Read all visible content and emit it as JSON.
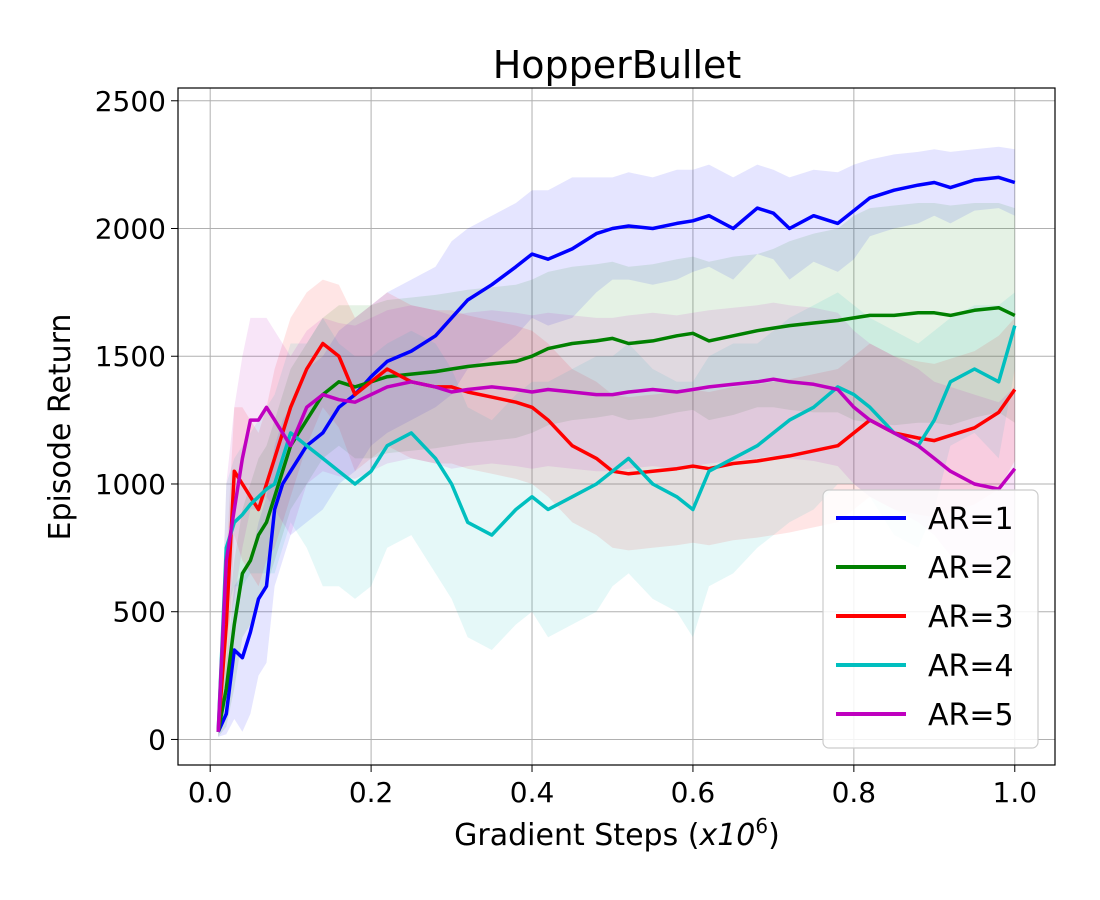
{
  "chart_data": {
    "type": "line",
    "title": "HopperBullet",
    "xlabel_prefix": "Gradient Steps (",
    "xlabel_var": "x10",
    "xlabel_exponent": "6",
    "xlabel_suffix": ")",
    "ylabel": "Episode Return",
    "xlim": [
      -0.04,
      1.05
    ],
    "ylim": [
      -100,
      2550
    ],
    "xticks": [
      0.0,
      0.2,
      0.4,
      0.6,
      0.8,
      1.0
    ],
    "xtick_labels": [
      "0.0",
      "0.2",
      "0.4",
      "0.6",
      "0.8",
      "1.0"
    ],
    "yticks": [
      0,
      500,
      1000,
      1500,
      2000,
      2500
    ],
    "ytick_labels": [
      "0",
      "500",
      "1000",
      "1500",
      "2000",
      "2500"
    ],
    "grid": true,
    "legend_position": "bottom-right",
    "x": [
      0.01,
      0.02,
      0.03,
      0.04,
      0.05,
      0.06,
      0.07,
      0.08,
      0.09,
      0.1,
      0.12,
      0.14,
      0.16,
      0.18,
      0.2,
      0.22,
      0.25,
      0.28,
      0.3,
      0.32,
      0.35,
      0.38,
      0.4,
      0.42,
      0.45,
      0.48,
      0.5,
      0.52,
      0.55,
      0.58,
      0.6,
      0.62,
      0.65,
      0.68,
      0.7,
      0.72,
      0.75,
      0.78,
      0.8,
      0.82,
      0.85,
      0.88,
      0.9,
      0.92,
      0.95,
      0.98,
      1.0
    ],
    "series": [
      {
        "name": "AR=1",
        "color": "#0000ff",
        "values": [
          30,
          100,
          350,
          320,
          420,
          550,
          600,
          900,
          1000,
          1050,
          1150,
          1200,
          1300,
          1350,
          1420,
          1480,
          1520,
          1580,
          1650,
          1720,
          1780,
          1850,
          1900,
          1880,
          1920,
          1980,
          2000,
          2010,
          2000,
          2020,
          2030,
          2050,
          2000,
          2080,
          2060,
          2000,
          2050,
          2020,
          2070,
          2120,
          2150,
          2170,
          2180,
          2160,
          2190,
          2200,
          2180
        ],
        "upper": [
          60,
          300,
          600,
          650,
          700,
          850,
          950,
          1150,
          1250,
          1300,
          1450,
          1500,
          1600,
          1650,
          1700,
          1750,
          1800,
          1850,
          1950,
          2000,
          2050,
          2100,
          2150,
          2150,
          2200,
          2200,
          2200,
          2220,
          2200,
          2230,
          2230,
          2250,
          2200,
          2250,
          2230,
          2200,
          2230,
          2220,
          2250,
          2270,
          2290,
          2300,
          2310,
          2300,
          2310,
          2320,
          2310
        ],
        "lower": [
          10,
          20,
          80,
          30,
          100,
          250,
          300,
          600,
          700,
          800,
          850,
          900,
          1000,
          1050,
          1150,
          1200,
          1250,
          1300,
          1350,
          1450,
          1500,
          1580,
          1650,
          1620,
          1650,
          1750,
          1800,
          1800,
          1780,
          1800,
          1830,
          1850,
          1800,
          1900,
          1880,
          1800,
          1870,
          1830,
          1880,
          1970,
          2000,
          2020,
          2050,
          2020,
          2070,
          2080,
          2050
        ]
      },
      {
        "name": "AR=2",
        "color": "#008000",
        "values": [
          30,
          200,
          450,
          650,
          700,
          800,
          850,
          950,
          1050,
          1150,
          1250,
          1350,
          1400,
          1380,
          1400,
          1420,
          1430,
          1440,
          1450,
          1460,
          1470,
          1480,
          1500,
          1530,
          1550,
          1560,
          1570,
          1550,
          1560,
          1580,
          1590,
          1560,
          1580,
          1600,
          1610,
          1620,
          1630,
          1640,
          1650,
          1660,
          1660,
          1670,
          1670,
          1660,
          1680,
          1690,
          1660
        ],
        "upper": [
          60,
          400,
          700,
          900,
          1000,
          1100,
          1150,
          1250,
          1350,
          1450,
          1550,
          1650,
          1700,
          1700,
          1700,
          1720,
          1730,
          1740,
          1750,
          1760,
          1770,
          1780,
          1800,
          1830,
          1850,
          1860,
          1870,
          1850,
          1860,
          1880,
          1890,
          1870,
          1890,
          1900,
          1920,
          1950,
          1980,
          2000,
          2050,
          2080,
          2090,
          2100,
          2100,
          2090,
          2100,
          2100,
          2080
        ],
        "lower": [
          10,
          50,
          200,
          400,
          450,
          550,
          600,
          700,
          800,
          900,
          1000,
          1100,
          1150,
          1100,
          1100,
          1120,
          1130,
          1140,
          1150,
          1160,
          1170,
          1180,
          1200,
          1230,
          1250,
          1260,
          1270,
          1250,
          1260,
          1280,
          1290,
          1250,
          1270,
          1300,
          1300,
          1290,
          1280,
          1280,
          1250,
          1240,
          1230,
          1240,
          1240,
          1230,
          1260,
          1280,
          1240
        ]
      },
      {
        "name": "AR=3",
        "color": "#ff0000",
        "values": [
          30,
          450,
          1050,
          1000,
          950,
          900,
          1000,
          1100,
          1200,
          1300,
          1450,
          1550,
          1500,
          1350,
          1400,
          1450,
          1400,
          1380,
          1380,
          1360,
          1340,
          1320,
          1300,
          1250,
          1150,
          1100,
          1050,
          1040,
          1050,
          1060,
          1070,
          1060,
          1080,
          1090,
          1100,
          1110,
          1130,
          1150,
          1200,
          1250,
          1200,
          1180,
          1170,
          1190,
          1220,
          1280,
          1370
        ],
        "upper": [
          60,
          700,
          1300,
          1300,
          1250,
          1200,
          1300,
          1450,
          1550,
          1650,
          1750,
          1800,
          1780,
          1650,
          1700,
          1750,
          1700,
          1680,
          1680,
          1660,
          1640,
          1620,
          1600,
          1550,
          1450,
          1400,
          1350,
          1340,
          1350,
          1360,
          1370,
          1360,
          1380,
          1390,
          1400,
          1410,
          1430,
          1450,
          1500,
          1550,
          1500,
          1480,
          1470,
          1490,
          1520,
          1580,
          1650
        ],
        "lower": [
          10,
          200,
          800,
          700,
          650,
          600,
          700,
          750,
          850,
          950,
          1150,
          1300,
          1220,
          1050,
          1100,
          1150,
          1100,
          1080,
          1080,
          1060,
          1040,
          1020,
          1000,
          950,
          850,
          800,
          750,
          740,
          750,
          760,
          770,
          760,
          780,
          790,
          800,
          810,
          830,
          850,
          900,
          950,
          900,
          880,
          870,
          890,
          920,
          980,
          1090
        ]
      },
      {
        "name": "AR=4",
        "color": "#00bfbf",
        "values": [
          30,
          750,
          850,
          880,
          920,
          950,
          980,
          1000,
          1100,
          1200,
          1150,
          1100,
          1050,
          1000,
          1050,
          1150,
          1200,
          1100,
          1000,
          850,
          800,
          900,
          950,
          900,
          950,
          1000,
          1050,
          1100,
          1000,
          950,
          900,
          1050,
          1100,
          1150,
          1200,
          1250,
          1300,
          1380,
          1350,
          1300,
          1200,
          1150,
          1250,
          1400,
          1450,
          1400,
          1620
        ],
        "upper": [
          60,
          1000,
          1100,
          1150,
          1200,
          1250,
          1300,
          1350,
          1450,
          1550,
          1550,
          1650,
          1550,
          1500,
          1500,
          1550,
          1600,
          1550,
          1450,
          1300,
          1250,
          1350,
          1400,
          1400,
          1450,
          1500,
          1500,
          1550,
          1450,
          1400,
          1400,
          1500,
          1550,
          1550,
          1600,
          1650,
          1700,
          1750,
          1700,
          1650,
          1600,
          1550,
          1600,
          1650,
          1700,
          1700,
          1750
        ],
        "lower": [
          10,
          500,
          600,
          600,
          650,
          650,
          650,
          650,
          750,
          850,
          750,
          600,
          600,
          550,
          600,
          750,
          800,
          650,
          550,
          400,
          350,
          450,
          500,
          400,
          450,
          500,
          600,
          650,
          550,
          500,
          400,
          600,
          650,
          750,
          800,
          850,
          900,
          1000,
          1000,
          950,
          800,
          750,
          900,
          1150,
          1200,
          1100,
          1450
        ]
      },
      {
        "name": "AR=5",
        "color": "#bf00bf",
        "values": [
          30,
          700,
          900,
          1100,
          1250,
          1250,
          1300,
          1250,
          1200,
          1150,
          1300,
          1350,
          1330,
          1320,
          1350,
          1380,
          1400,
          1380,
          1360,
          1370,
          1380,
          1370,
          1360,
          1370,
          1360,
          1350,
          1350,
          1360,
          1370,
          1360,
          1370,
          1380,
          1390,
          1400,
          1410,
          1400,
          1390,
          1370,
          1300,
          1250,
          1200,
          1150,
          1100,
          1050,
          1000,
          980,
          1060
        ],
        "upper": [
          60,
          1000,
          1300,
          1500,
          1650,
          1650,
          1650,
          1600,
          1550,
          1500,
          1600,
          1650,
          1630,
          1620,
          1650,
          1680,
          1700,
          1680,
          1660,
          1670,
          1680,
          1670,
          1660,
          1670,
          1660,
          1650,
          1650,
          1660,
          1670,
          1660,
          1670,
          1680,
          1690,
          1700,
          1710,
          1700,
          1690,
          1670,
          1600,
          1550,
          1500,
          1450,
          1400,
          1380,
          1350,
          1320,
          1380
        ],
        "lower": [
          10,
          400,
          550,
          750,
          900,
          900,
          950,
          900,
          850,
          800,
          1000,
          1050,
          1030,
          1020,
          1050,
          1080,
          1100,
          1080,
          1060,
          1070,
          1080,
          1070,
          1060,
          1070,
          1060,
          1050,
          1050,
          1060,
          1070,
          1060,
          1070,
          1080,
          1090,
          1100,
          1110,
          1100,
          1090,
          1070,
          1000,
          950,
          900,
          850,
          800,
          720,
          650,
          640,
          740
        ]
      }
    ]
  }
}
